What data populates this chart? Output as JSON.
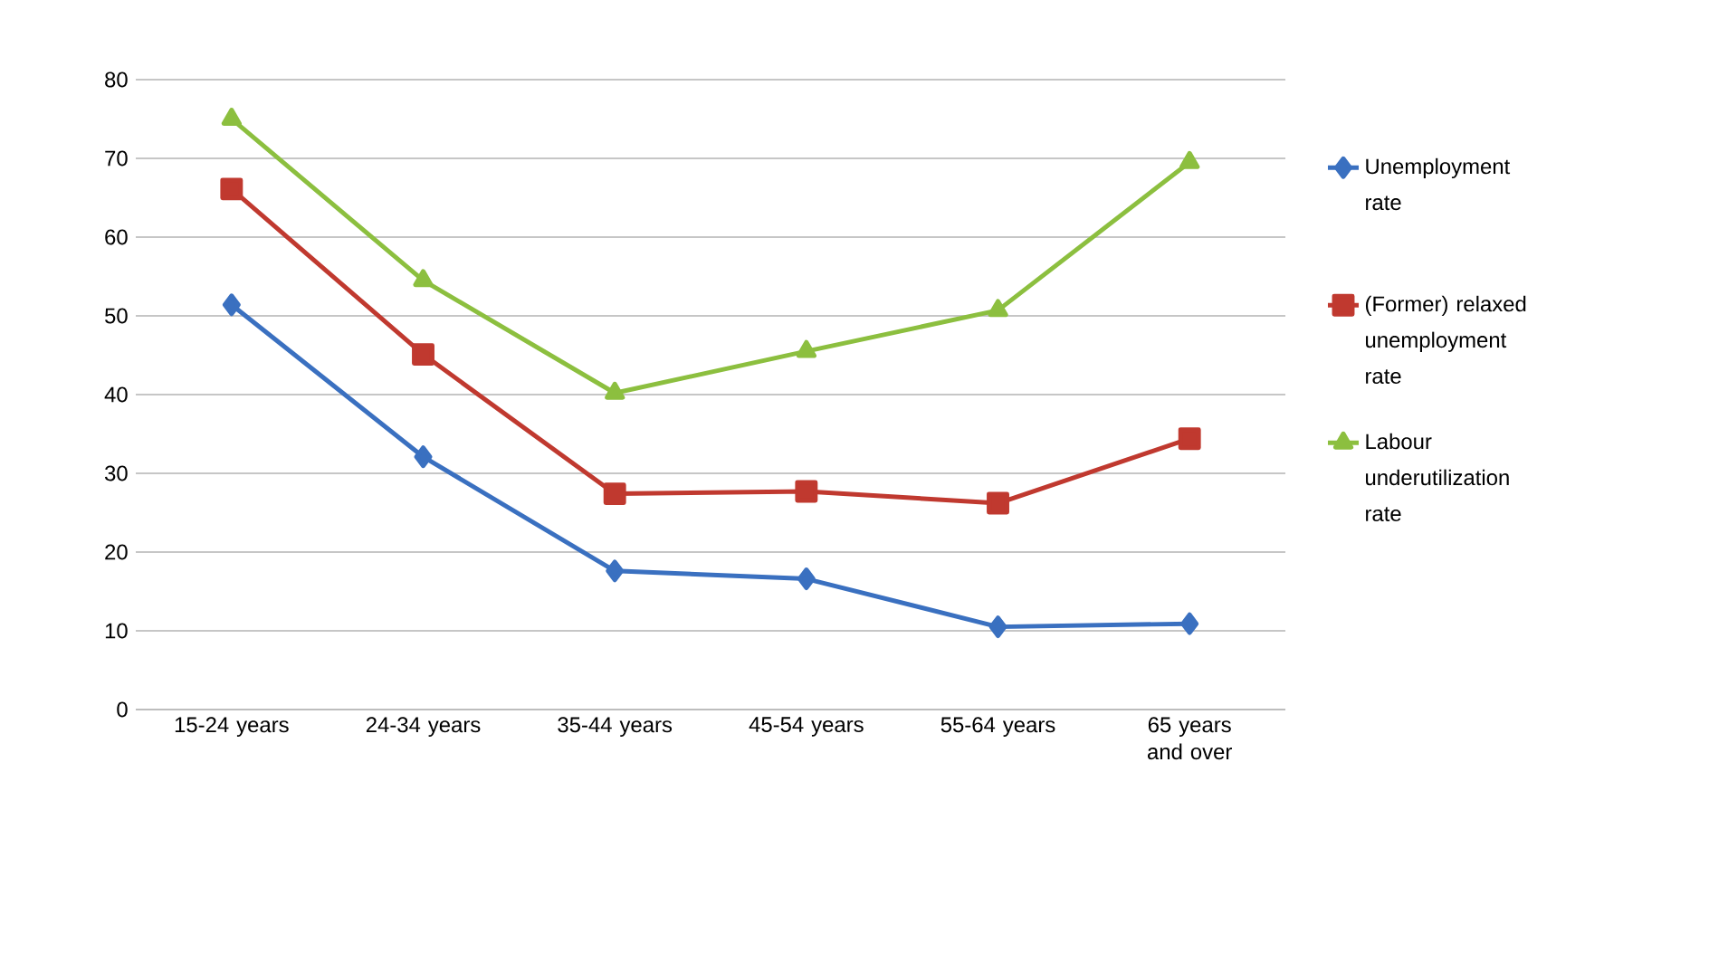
{
  "chart_data": {
    "type": "line",
    "categories": [
      "15-24 years",
      "24-34 years",
      "35-44 years",
      "45-54 years",
      "55-64 years",
      "65 years and over"
    ],
    "series": [
      {
        "name": "Unemployment rate",
        "color": "#3a70c0",
        "marker": "diamond",
        "values": [
          51.4,
          32.1,
          17.6,
          16.6,
          10.5,
          10.9
        ]
      },
      {
        "name": "(Former) relaxed unemployment rate",
        "color": "#c0392f",
        "marker": "square",
        "values": [
          66.1,
          45.1,
          27.4,
          27.7,
          26.2,
          34.4
        ]
      },
      {
        "name": "Labour underutilization rate",
        "color": "#8cbf3f",
        "marker": "triangle",
        "values": [
          75.0,
          54.5,
          40.2,
          45.5,
          50.7,
          69.5
        ]
      }
    ],
    "ylim": [
      0,
      80
    ],
    "yticks": [
      0,
      10,
      20,
      30,
      40,
      50,
      60,
      70,
      80
    ],
    "grid": "y",
    "legend": "right",
    "line_style": "solid"
  }
}
